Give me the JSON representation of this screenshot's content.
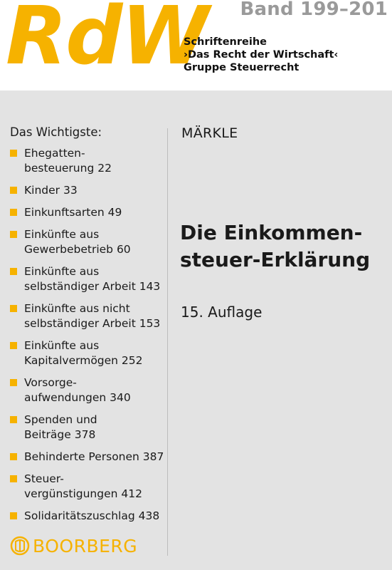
{
  "header": {
    "logo_main": "RdW",
    "band": "Band 199–201",
    "series_lines": [
      "Schriftenreihe",
      "›Das Recht der Wirtschaft‹",
      "Gruppe Steuerrecht"
    ]
  },
  "contents": {
    "heading": "Das Wichtigste:",
    "items": [
      {
        "lines": [
          "Ehegatten-",
          "besteuerung  22"
        ]
      },
      {
        "lines": [
          "Kinder  33"
        ]
      },
      {
        "lines": [
          "Einkunftsarten  49"
        ]
      },
      {
        "lines": [
          "Einkünfte aus",
          "Gewerbebetrieb  60"
        ]
      },
      {
        "lines": [
          "Einkünfte aus",
          "selbständiger Arbeit  143"
        ]
      },
      {
        "lines": [
          "Einkünfte aus nicht",
          "selbständiger Arbeit  153"
        ]
      },
      {
        "lines": [
          "Einkünfte aus",
          "Kapitalvermögen  252"
        ]
      },
      {
        "lines": [
          "Vorsorge-",
          "aufwendungen  340"
        ]
      },
      {
        "lines": [
          "Spenden und",
          "Beiträge  378"
        ]
      },
      {
        "lines": [
          "Behinderte Personen  387"
        ]
      },
      {
        "lines": [
          "Steuer-",
          "vergünstigungen  412"
        ]
      },
      {
        "lines": [
          "Solidaritätszuschlag  438"
        ]
      }
    ]
  },
  "book": {
    "author": "MÄRKLE",
    "title_lines": [
      "Die Einkommen-",
      "steuer-Erklärung"
    ],
    "edition": "15. Auflage"
  },
  "publisher": {
    "name": "BOORBERG",
    "emblem_icon": "boorberg-emblem-icon"
  },
  "colors": {
    "accent": "#f6b200",
    "panel": "#e3e3e3",
    "band_text": "#9a9a9a"
  }
}
